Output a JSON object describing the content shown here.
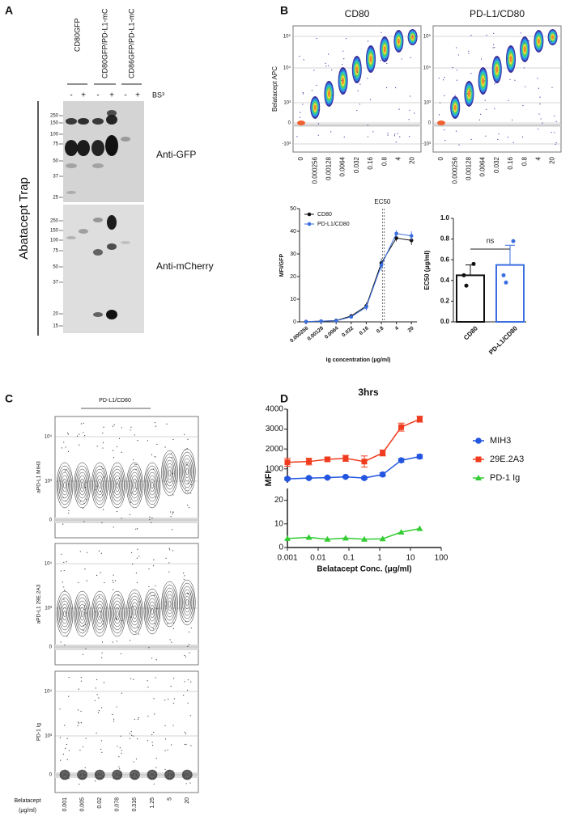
{
  "panel_labels": [
    "A",
    "B",
    "C",
    "D"
  ],
  "panel_a": {
    "lanes": [
      "CD80GFP",
      "CD80GFP/PD-L1-mC",
      "CD86GFP/PD-L1-mC"
    ],
    "treatment": [
      "-",
      "+",
      "-",
      "+",
      "-",
      "+"
    ],
    "crosslinker": "BS³",
    "side_label": "Abatacept Trap",
    "blots": [
      {
        "label": "Anti-GFP",
        "markers": [
          "250",
          "150",
          "100",
          "75",
          "50",
          "37",
          "25"
        ]
      },
      {
        "label": "Anti-mCherry",
        "markers": [
          "250",
          "150",
          "100",
          "75",
          "50",
          "37",
          "20",
          "15"
        ]
      }
    ]
  },
  "panel_b_flow": {
    "y_label": "Belatacept APC",
    "plots": [
      {
        "title": "CD80"
      },
      {
        "title": "PD-L1/CD80"
      }
    ],
    "y_ticks": [
      "10⁵",
      "10⁴",
      "10³",
      "0",
      "-10³"
    ],
    "x_labels": [
      "0",
      "0.000256",
      "0.00128",
      "0.0064",
      "0.032",
      "0.16",
      "0.8",
      "4",
      "20"
    ]
  },
  "panel_c": {
    "group_label": "PD-L1/CD80",
    "rows": [
      {
        "y_label": "aPD-L1 MIH3"
      },
      {
        "y_label": "aPD-L1 29E.2A3"
      },
      {
        "y_label": "PD-1 Ig"
      }
    ],
    "y_ticks": [
      "10⁴",
      "10³",
      "0"
    ],
    "x_title_lines": [
      "Belatacept",
      "(μg/ml)"
    ],
    "x_labels": [
      "0.001",
      "0.005",
      "0.02",
      "0.078",
      "0.316",
      "1.25",
      "5",
      "20"
    ]
  },
  "chart_data": [
    {
      "type": "line",
      "x_label": "Ig concentration (μg/ml)",
      "y_label": "MFI/GFP",
      "xlog": true,
      "x": [
        0.000256,
        0.00128,
        0.0064,
        0.032,
        0.16,
        0.8,
        4,
        20
      ],
      "xlim": [
        0.000128,
        36
      ],
      "xticks": [
        0.000256,
        0.00128,
        0.0064,
        0.032,
        0.16,
        0.8,
        4,
        20
      ],
      "ylim": [
        0,
        50
      ],
      "yticks": [
        0,
        10,
        20,
        30,
        40,
        50
      ],
      "legend": "upper left",
      "series": [
        {
          "name": "CD80",
          "color": "#111111",
          "values": [
            0.1,
            0.3,
            0.6,
            2.6,
            7,
            26,
            37,
            36
          ],
          "errors": [
            0.2,
            0.2,
            0.3,
            0.8,
            1.5,
            2,
            1.5,
            2
          ]
        },
        {
          "name": "PD-L1/CD80",
          "color": "#3b6fe0",
          "values": [
            0.1,
            0.3,
            0.5,
            2.2,
            6.5,
            25,
            39,
            38
          ],
          "errors": [
            0.2,
            0.2,
            0.3,
            0.8,
            1.5,
            2.5,
            1.5,
            2
          ]
        }
      ],
      "annotation": "EC50",
      "annotation_x": [
        0.9,
        1.1
      ]
    },
    {
      "type": "bar",
      "y_label": "EC50 (μg/ml)",
      "categories": [
        "CD80",
        "PD-L1/CD80"
      ],
      "values": [
        0.45,
        0.55
      ],
      "errors": [
        0.1,
        0.19
      ],
      "colors": [
        "#111111",
        "#3b6fe0"
      ],
      "points": [
        [
          0.56,
          0.45,
          0.35
        ],
        [
          0.78,
          0.45,
          0.38
        ]
      ],
      "ylim": [
        0,
        1
      ],
      "yticks": [
        {
          "value": 0,
          "label": "0.0"
        },
        0.2,
        0.4,
        0.6,
        0.8,
        {
          "value": 1,
          "label": "1.0"
        }
      ],
      "annotation": "ns"
    },
    {
      "type": "line",
      "title": "3hrs",
      "x_label": "Belatacept Conc. (μg/ml)",
      "y_label": "MFI",
      "xlog": true,
      "x": [
        0.001,
        0.005,
        0.02,
        0.078,
        0.316,
        1.25,
        5,
        20
      ],
      "xlim": [
        0.001,
        100
      ],
      "xticks": [
        0.001,
        0.01,
        0.1,
        1,
        10,
        100
      ],
      "ylim": [
        300,
        4000
      ],
      "yticks": [
        1000,
        2000,
        3000,
        4000
      ],
      "y2lim": [
        0,
        25
      ],
      "y2ticks": [
        0,
        10,
        20
      ],
      "legend": "right",
      "series": [
        {
          "name": "MIH3",
          "color": "#2255e0",
          "marker": "circle",
          "values": [
            500,
            540,
            560,
            600,
            540,
            720,
            1430,
            1620
          ],
          "errors": [
            60,
            40,
            40,
            40,
            60,
            90,
            90,
            100
          ]
        },
        {
          "name": "29E.2A3",
          "color": "#f03c1e",
          "marker": "square",
          "values": [
            1330,
            1370,
            1480,
            1530,
            1370,
            1800,
            3100,
            3500
          ],
          "errors": [
            200,
            170,
            100,
            150,
            280,
            150,
            200,
            150
          ]
        },
        {
          "name": "PD-1 Ig",
          "color": "#33cc33",
          "marker": "triangle",
          "axis": "y2",
          "values": [
            3.8,
            4.3,
            3.5,
            4.0,
            3.5,
            3.7,
            6.5,
            8.0
          ]
        }
      ]
    }
  ]
}
